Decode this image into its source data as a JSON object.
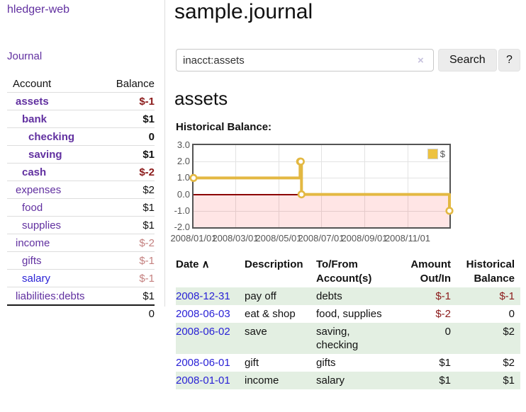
{
  "app": {
    "title": "hledger-web"
  },
  "colors": {
    "link_purple": "#6130a0",
    "link_blue": "#2a22d6",
    "negative_strong": "#8b1a1a",
    "negative_faded": "#c4807f",
    "row_green": "#e3efe2",
    "chart_line": "#e3b842",
    "chart_legend_fill": "#edc240",
    "chart_zero_line": "#8b0000",
    "chart_negative_region": "rgba(255,0,0,0.10)",
    "chart_border": "#545454"
  },
  "sidebar": {
    "journal_link": "Journal",
    "accounts_table": {
      "account_header": "Account",
      "balance_header": "Balance",
      "rows": [
        {
          "name": "assets",
          "level": 1,
          "balance": "$-1",
          "matched": true
        },
        {
          "name": "bank",
          "level": 2,
          "balance": "$1",
          "matched": true
        },
        {
          "name": "checking",
          "level": 3,
          "balance": "0",
          "matched": true
        },
        {
          "name": "saving",
          "level": 3,
          "balance": "$1",
          "matched": true
        },
        {
          "name": "cash",
          "level": 2,
          "balance": "$-2",
          "matched": true
        },
        {
          "name": "expenses",
          "level": 1,
          "balance": "$2",
          "matched": false
        },
        {
          "name": "food",
          "level": 2,
          "balance": "$1",
          "matched": false
        },
        {
          "name": "supplies",
          "level": 2,
          "balance": "$1",
          "matched": false
        },
        {
          "name": "income",
          "level": 1,
          "balance": "$-2",
          "matched": false
        },
        {
          "name": "gifts",
          "level": 2,
          "balance": "$-1",
          "matched": false
        },
        {
          "name": "salary",
          "level": 2,
          "balance": "$-1",
          "matched": false,
          "link_color": "blue"
        },
        {
          "name": "liabilities:debts",
          "level": 1,
          "balance": "$1",
          "matched": false
        }
      ],
      "total": "0"
    }
  },
  "header": {
    "title": "sample.journal"
  },
  "search": {
    "value": "inacct:assets",
    "clear_icon": "×",
    "button_label": "Search",
    "help_label": "?"
  },
  "account_page": {
    "heading": "assets",
    "chart_label": "Historical Balance:"
  },
  "chart_data": {
    "type": "line",
    "title": "Historical Balance",
    "steps": true,
    "legend": "$",
    "legend_position": "top-right",
    "grid": true,
    "ylim": [
      -2,
      3
    ],
    "xlim": [
      "2008-01-01",
      "2008-12-31"
    ],
    "y_ticks": [
      "3.0",
      "2.0",
      "1.0",
      "0.0",
      "-1.0",
      "-2.0"
    ],
    "x_ticks": [
      "2008/01/01",
      "2008/03/01",
      "2008/05/01",
      "2008/07/01",
      "2008/09/01",
      "2008/11/01"
    ],
    "series": [
      {
        "name": "$",
        "points": [
          [
            "2008-01-01",
            1
          ],
          [
            "2008-06-01",
            2
          ],
          [
            "2008-06-02",
            2
          ],
          [
            "2008-06-03",
            0
          ],
          [
            "2008-12-31",
            -1
          ]
        ]
      }
    ]
  },
  "transactions": {
    "columns": [
      {
        "label": "Date",
        "sort_indicator": "∧",
        "align": "left"
      },
      {
        "label": "Description",
        "align": "left"
      },
      {
        "label": "To/From Account(s)",
        "align": "left"
      },
      {
        "label": "Amount Out/In",
        "align": "right"
      },
      {
        "label": "Historical Balance",
        "align": "right"
      }
    ],
    "rows": [
      {
        "date": "2008-12-31",
        "description": "pay off",
        "accounts": "debts",
        "amount": "$-1",
        "balance": "$-1"
      },
      {
        "date": "2008-06-03",
        "description": "eat & shop",
        "accounts": "food, supplies",
        "amount": "$-2",
        "balance": "0"
      },
      {
        "date": "2008-06-02",
        "description": "save",
        "accounts": "saving, checking",
        "amount": "0",
        "balance": "$2"
      },
      {
        "date": "2008-06-01",
        "description": "gift",
        "accounts": "gifts",
        "amount": "$1",
        "balance": "$2"
      },
      {
        "date": "2008-01-01",
        "description": "income",
        "accounts": "salary",
        "amount": "$1",
        "balance": "$1"
      }
    ]
  }
}
